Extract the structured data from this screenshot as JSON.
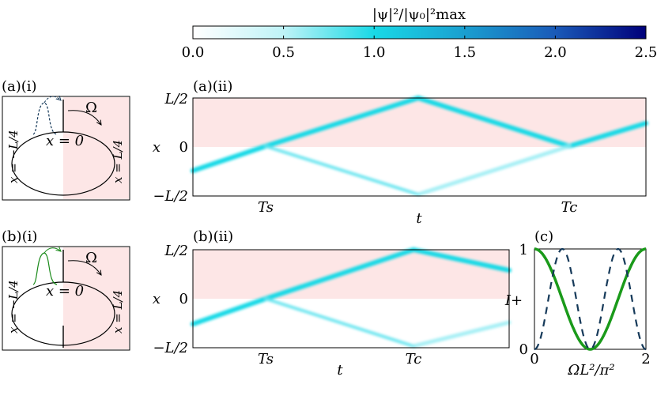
{
  "colorbar": {
    "title": "|ψ|²/|ψ₀|²max",
    "ticks": [
      "0.0",
      "0.5",
      "1.0",
      "1.5",
      "2.0",
      "2.5"
    ],
    "range": [
      0,
      2.5
    ],
    "colors": {
      "low": "#ffffff",
      "mid": "#19d9e6",
      "high": "#00007a"
    }
  },
  "panel_a_i": {
    "label": "(a)(i)",
    "ring_labels": {
      "top": "x = 0",
      "left": "x = −L/4",
      "right": "x = L/4",
      "omega": "Ω"
    },
    "shading": "#fde6e6"
  },
  "panel_b_i": {
    "label": "(b)(i)",
    "ring_labels": {
      "top": "x = 0",
      "left": "x = −L/4",
      "right": "x = L/4",
      "omega": "Ω"
    },
    "shading": "#fde6e6"
  },
  "panel_a_ii": {
    "label": "(a)(ii)",
    "ylabel": "x",
    "xlabel": "t",
    "yticks": [
      "L/2",
      "0",
      "−L/2"
    ],
    "xticks": [
      "Ts",
      "Tc"
    ]
  },
  "panel_b_ii": {
    "label": "(b)(ii)",
    "ylabel": "x",
    "xlabel": "t",
    "yticks": [
      "L/2",
      "0",
      "−L/2"
    ],
    "xticks": [
      "Ts",
      "Tc"
    ]
  },
  "panel_c": {
    "label": "(c)",
    "ylabel": "I+",
    "xlabel": "ΩL²/π²",
    "xticks": [
      "0",
      "2"
    ],
    "yticks": [
      "0",
      "1"
    ],
    "colors": {
      "solid": "#1a9a1a",
      "dashed": "#163a5a"
    }
  },
  "chart_data": {
    "type": "line",
    "x_range": [
      0,
      2
    ],
    "ylim": [
      0,
      1
    ],
    "series": [
      {
        "style": "solid",
        "x": [
          0,
          0.25,
          0.5,
          0.75,
          1.0,
          1.25,
          1.5,
          1.75,
          2.0
        ],
        "y": [
          1.0,
          0.85,
          0.5,
          0.15,
          0.0,
          0.15,
          0.5,
          0.85,
          1.0
        ]
      },
      {
        "style": "dashed",
        "x": [
          0,
          0.25,
          0.5,
          0.75,
          1.0,
          1.25,
          1.5,
          1.75,
          2.0
        ],
        "y": [
          0.0,
          0.5,
          1.0,
          0.5,
          0.0,
          0.5,
          1.0,
          0.5,
          0.0
        ]
      }
    ]
  }
}
